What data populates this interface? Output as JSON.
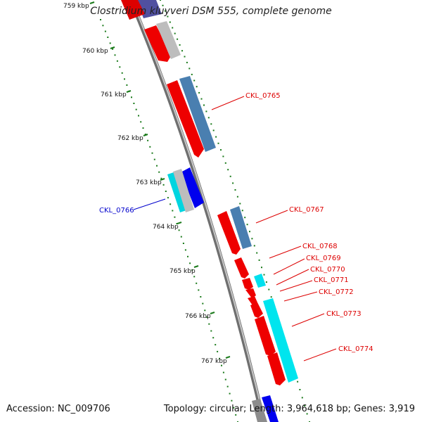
{
  "title": "Clostridium kluyveri DSM 555, complete genome",
  "footer": {
    "accession": "Accession: NC_009706",
    "summary": "Topology: circular; Length: 3,964,618 bp; Genes: 3,919"
  },
  "colors": {
    "backbone": "#8c8c8c",
    "tick": "#1a7a1a",
    "red_label": "#dd0000",
    "blue_label": "#0000cc"
  },
  "ticks": [
    "759 kbp",
    "760 kbp",
    "761 kbp",
    "762 kbp",
    "763 kbp",
    "764 kbp",
    "765 kbp",
    "766 kbp",
    "767 kbp"
  ],
  "gene_labels": {
    "ckl_0765": "CKL_0765",
    "ckl_0766": "CKL_0766",
    "ckl_0767": "CKL_0767",
    "ckl_0768": "CKL_0768",
    "ckl_0769": "CKL_0769",
    "ckl_0770": "CKL_0770",
    "ckl_0771": "CKL_0771",
    "ckl_0772": "CKL_0772",
    "ckl_0773": "CKL_0773",
    "ckl_0774": "CKL_0774"
  }
}
